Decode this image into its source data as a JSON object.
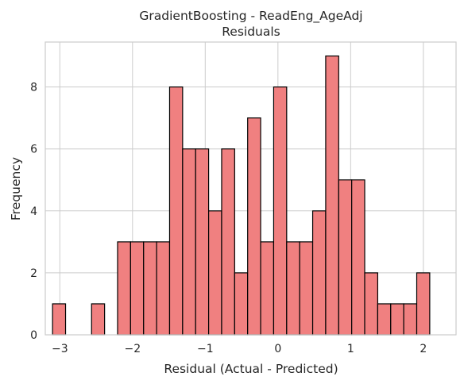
{
  "chart_data": {
    "type": "bar",
    "title": "GradientBoosting - ReadEng_AgeAdj",
    "subtitle": "Residuals",
    "xlabel": "Residual (Actual - Predicted)",
    "ylabel": "Frequency",
    "xlim": [
      -3.2,
      2.45
    ],
    "ylim": [
      0,
      9.45
    ],
    "xticks": [
      -3,
      -2,
      -1,
      0,
      1,
      2
    ],
    "yticks": [
      0,
      2,
      4,
      6,
      8
    ],
    "grid": true,
    "bin_start": -3.1,
    "bin_width": 0.1789,
    "values": [
      1,
      0,
      0,
      1,
      0,
      3,
      3,
      3,
      3,
      8,
      6,
      6,
      4,
      6,
      2,
      7,
      3,
      8,
      3,
      3,
      4,
      9,
      5,
      5,
      2,
      1,
      1,
      1,
      2
    ],
    "colors": {
      "bar_fill": "#f08080",
      "bar_edge": "#000000",
      "grid": "#cccccc"
    }
  }
}
